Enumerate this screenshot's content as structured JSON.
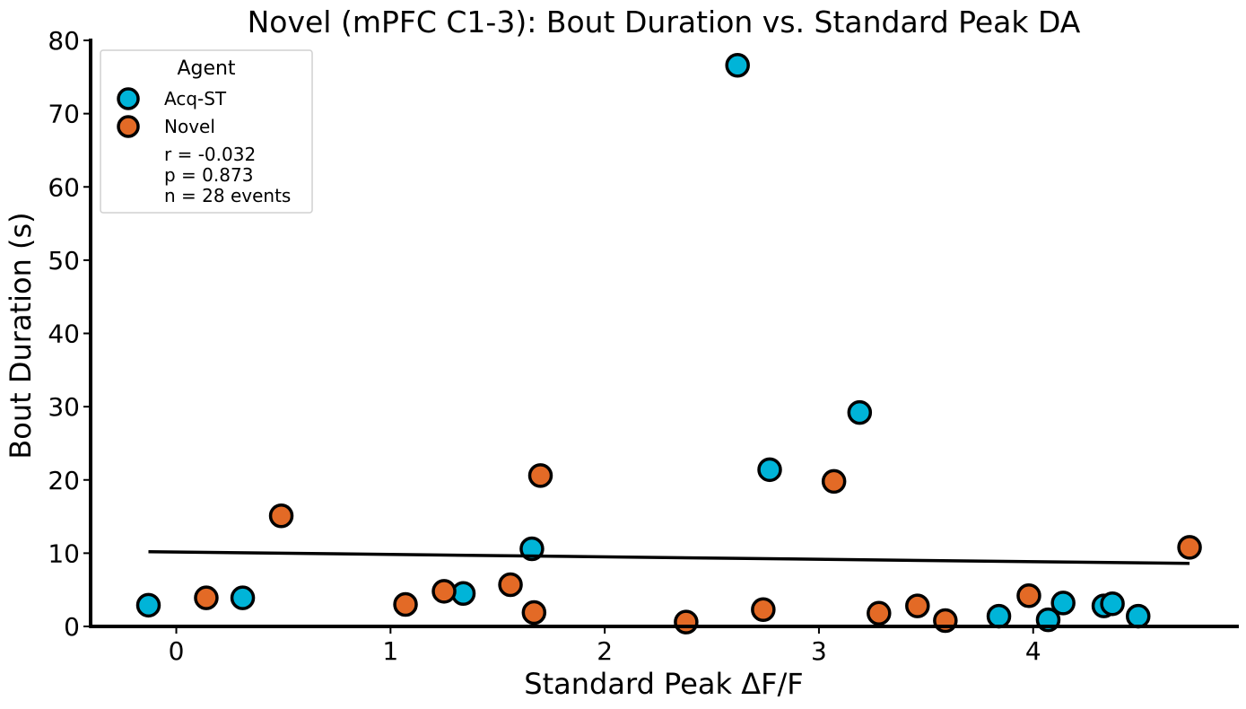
{
  "chart_data": {
    "type": "scatter",
    "title": "Novel (mPFC C1-3): Bout Duration vs. Standard Peak DA",
    "xlabel": "Standard Peak ΔF/F",
    "ylabel": "Bout Duration (s)",
    "xlim": [
      -0.4,
      4.96
    ],
    "ylim": [
      0,
      80
    ],
    "xticks": [
      "0",
      "1",
      "2",
      "3",
      "4"
    ],
    "yticks": [
      "0",
      "10",
      "20",
      "30",
      "40",
      "50",
      "60",
      "70",
      "80"
    ],
    "grid": false,
    "legend": {
      "title": "Agent",
      "placement": "top-left",
      "stats": [
        "r = -0.032",
        "p = 0.873",
        "n = 28 events"
      ]
    },
    "series": [
      {
        "name": "Acq-ST",
        "color": "#00b4d8",
        "points": [
          {
            "x": -0.13,
            "y": 2.9
          },
          {
            "x": 0.31,
            "y": 3.9
          },
          {
            "x": 1.34,
            "y": 4.5
          },
          {
            "x": 1.66,
            "y": 10.6
          },
          {
            "x": 2.62,
            "y": 76.6
          },
          {
            "x": 2.77,
            "y": 21.4
          },
          {
            "x": 3.19,
            "y": 29.2
          },
          {
            "x": 3.84,
            "y": 1.4
          },
          {
            "x": 4.07,
            "y": 0.9
          },
          {
            "x": 4.14,
            "y": 3.2
          },
          {
            "x": 4.33,
            "y": 2.8
          },
          {
            "x": 4.37,
            "y": 3.1
          },
          {
            "x": 4.49,
            "y": 1.4
          }
        ]
      },
      {
        "name": "Novel",
        "color": "#e36a26",
        "points": [
          {
            "x": 0.14,
            "y": 3.9
          },
          {
            "x": 0.49,
            "y": 15.1
          },
          {
            "x": 1.07,
            "y": 3.0
          },
          {
            "x": 1.25,
            "y": 4.8
          },
          {
            "x": 1.56,
            "y": 5.7
          },
          {
            "x": 1.67,
            "y": 1.9
          },
          {
            "x": 1.7,
            "y": 20.6
          },
          {
            "x": 2.38,
            "y": 0.6
          },
          {
            "x": 2.74,
            "y": 2.3
          },
          {
            "x": 3.07,
            "y": 19.8
          },
          {
            "x": 3.28,
            "y": 1.8
          },
          {
            "x": 3.46,
            "y": 2.8
          },
          {
            "x": 3.59,
            "y": 0.8
          },
          {
            "x": 3.98,
            "y": 4.2
          },
          {
            "x": 4.73,
            "y": 10.8
          }
        ]
      }
    ],
    "fit_line": {
      "color": "#000000",
      "x": [
        -0.13,
        4.73
      ],
      "y": [
        10.2,
        8.6
      ]
    }
  }
}
